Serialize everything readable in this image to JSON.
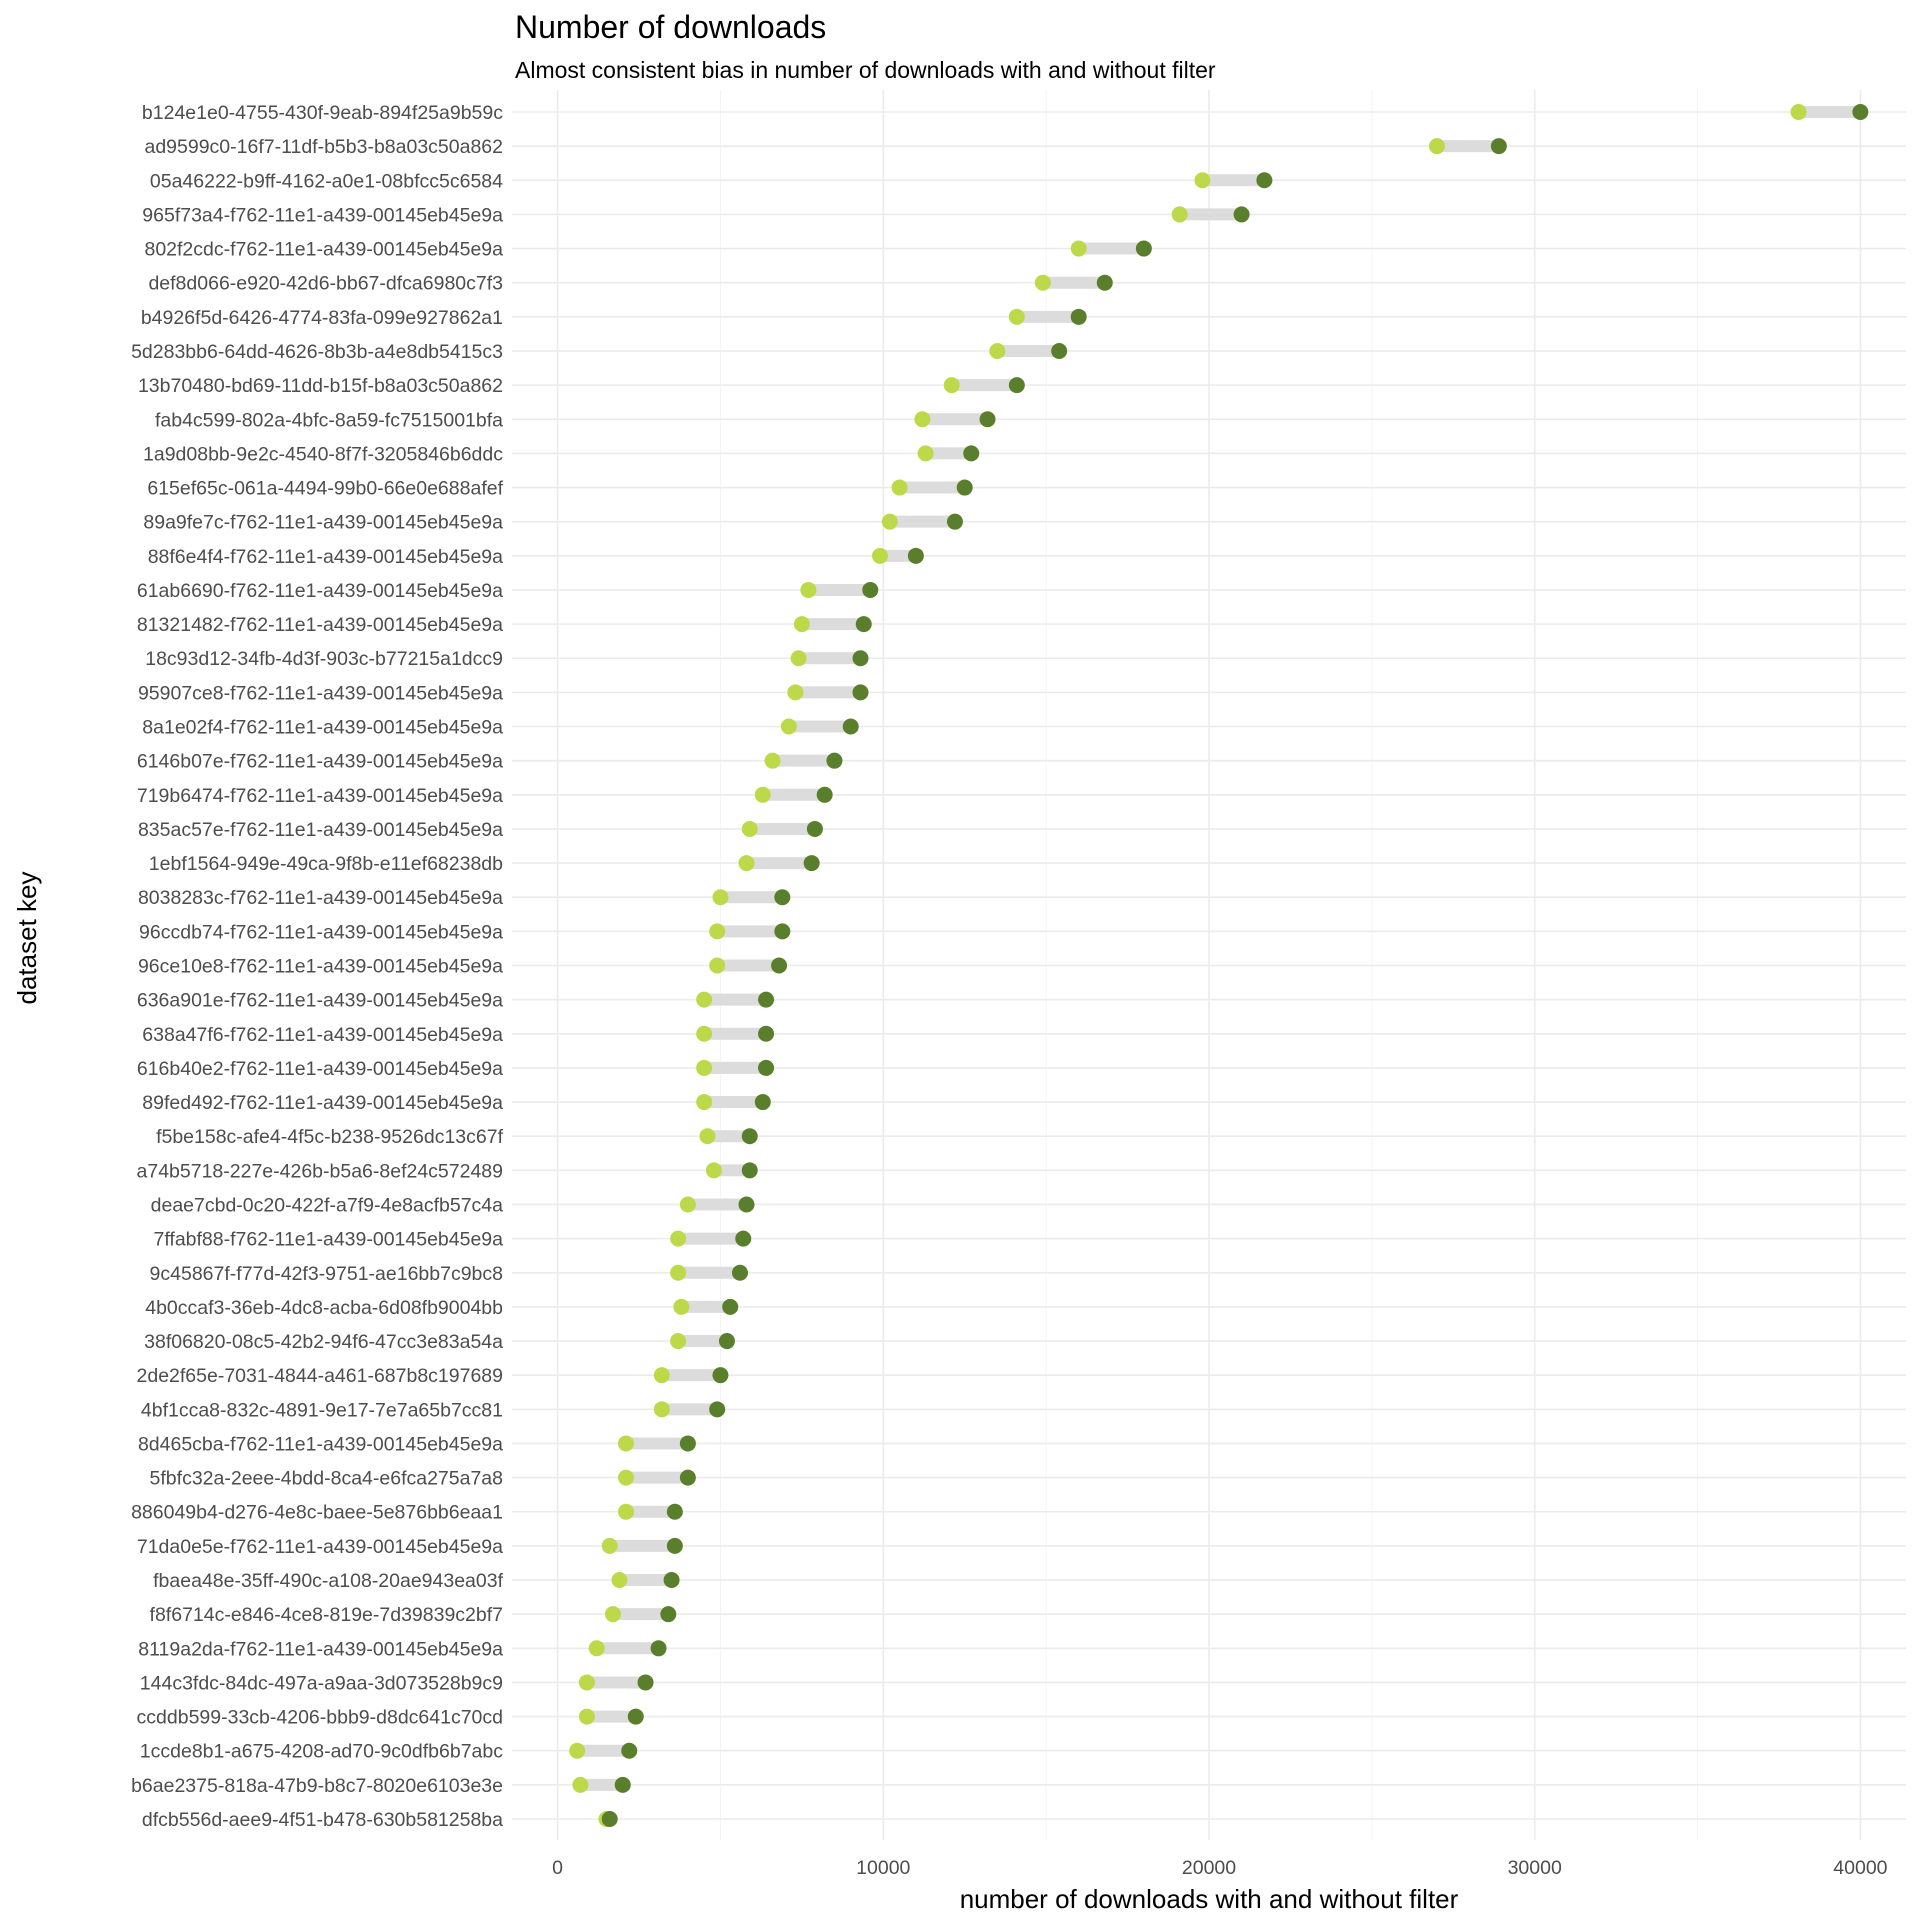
{
  "chart_data": {
    "type": "scatter",
    "title": "Number of downloads",
    "subtitle": "Almost consistent bias in number of downloads with and without filter",
    "xlabel": "number of downloads with and without filter",
    "ylabel": "dataset key",
    "xlim": [
      -1400,
      41400
    ],
    "x_ticks": [
      0,
      10000,
      20000,
      30000,
      40000
    ],
    "x_tick_labels": [
      "0",
      "10000",
      "20000",
      "30000",
      "40000"
    ],
    "grid": true,
    "legend": "none",
    "colors": {
      "light_point": "#bcd94a",
      "dark_point": "#5a7f2c",
      "segment": "#dcdcdc"
    },
    "datasets": [
      {
        "key": "b124e1e0-4755-430f-9eab-894f25a9b59c",
        "light": 38100,
        "dark": 40000
      },
      {
        "key": "ad9599c0-16f7-11df-b5b3-b8a03c50a862",
        "light": 27000,
        "dark": 28900
      },
      {
        "key": "05a46222-b9ff-4162-a0e1-08bfcc5c6584",
        "light": 19800,
        "dark": 21700
      },
      {
        "key": "965f73a4-f762-11e1-a439-00145eb45e9a",
        "light": 19100,
        "dark": 21000
      },
      {
        "key": "802f2cdc-f762-11e1-a439-00145eb45e9a",
        "light": 16000,
        "dark": 18000
      },
      {
        "key": "def8d066-e920-42d6-bb67-dfca6980c7f3",
        "light": 14900,
        "dark": 16800
      },
      {
        "key": "b4926f5d-6426-4774-83fa-099e927862a1",
        "light": 14100,
        "dark": 16000
      },
      {
        "key": "5d283bb6-64dd-4626-8b3b-a4e8db5415c3",
        "light": 13500,
        "dark": 15400
      },
      {
        "key": "13b70480-bd69-11dd-b15f-b8a03c50a862",
        "light": 12100,
        "dark": 14100
      },
      {
        "key": "fab4c599-802a-4bfc-8a59-fc7515001bfa",
        "light": 11200,
        "dark": 13200
      },
      {
        "key": "1a9d08bb-9e2c-4540-8f7f-3205846b6ddc",
        "light": 11300,
        "dark": 12700
      },
      {
        "key": "615ef65c-061a-4494-99b0-66e0e688afef",
        "light": 10500,
        "dark": 12500
      },
      {
        "key": "89a9fe7c-f762-11e1-a439-00145eb45e9a",
        "light": 10200,
        "dark": 12200
      },
      {
        "key": "88f6e4f4-f762-11e1-a439-00145eb45e9a",
        "light": 9900,
        "dark": 11000
      },
      {
        "key": "61ab6690-f762-11e1-a439-00145eb45e9a",
        "light": 7700,
        "dark": 9600
      },
      {
        "key": "81321482-f762-11e1-a439-00145eb45e9a",
        "light": 7500,
        "dark": 9400
      },
      {
        "key": "18c93d12-34fb-4d3f-903c-b77215a1dcc9",
        "light": 7400,
        "dark": 9300
      },
      {
        "key": "95907ce8-f762-11e1-a439-00145eb45e9a",
        "light": 7300,
        "dark": 9300
      },
      {
        "key": "8a1e02f4-f762-11e1-a439-00145eb45e9a",
        "light": 7100,
        "dark": 9000
      },
      {
        "key": "6146b07e-f762-11e1-a439-00145eb45e9a",
        "light": 6600,
        "dark": 8500
      },
      {
        "key": "719b6474-f762-11e1-a439-00145eb45e9a",
        "light": 6300,
        "dark": 8200
      },
      {
        "key": "835ac57e-f762-11e1-a439-00145eb45e9a",
        "light": 5900,
        "dark": 7900
      },
      {
        "key": "1ebf1564-949e-49ca-9f8b-e11ef68238db",
        "light": 5800,
        "dark": 7800
      },
      {
        "key": "8038283c-f762-11e1-a439-00145eb45e9a",
        "light": 5000,
        "dark": 6900
      },
      {
        "key": "96ccdb74-f762-11e1-a439-00145eb45e9a",
        "light": 4900,
        "dark": 6900
      },
      {
        "key": "96ce10e8-f762-11e1-a439-00145eb45e9a",
        "light": 4900,
        "dark": 6800
      },
      {
        "key": "636a901e-f762-11e1-a439-00145eb45e9a",
        "light": 4500,
        "dark": 6400
      },
      {
        "key": "638a47f6-f762-11e1-a439-00145eb45e9a",
        "light": 4500,
        "dark": 6400
      },
      {
        "key": "616b40e2-f762-11e1-a439-00145eb45e9a",
        "light": 4500,
        "dark": 6400
      },
      {
        "key": "89fed492-f762-11e1-a439-00145eb45e9a",
        "light": 4500,
        "dark": 6300
      },
      {
        "key": "f5be158c-afe4-4f5c-b238-9526dc13c67f",
        "light": 4600,
        "dark": 5900
      },
      {
        "key": "a74b5718-227e-426b-b5a6-8ef24c572489",
        "light": 4800,
        "dark": 5900
      },
      {
        "key": "deae7cbd-0c20-422f-a7f9-4e8acfb57c4a",
        "light": 4000,
        "dark": 5800
      },
      {
        "key": "7ffabf88-f762-11e1-a439-00145eb45e9a",
        "light": 3700,
        "dark": 5700
      },
      {
        "key": "9c45867f-f77d-42f3-9751-ae16bb7c9bc8",
        "light": 3700,
        "dark": 5600
      },
      {
        "key": "4b0ccaf3-36eb-4dc8-acba-6d08fb9004bb",
        "light": 3800,
        "dark": 5300
      },
      {
        "key": "38f06820-08c5-42b2-94f6-47cc3e83a54a",
        "light": 3700,
        "dark": 5200
      },
      {
        "key": "2de2f65e-7031-4844-a461-687b8c197689",
        "light": 3200,
        "dark": 5000
      },
      {
        "key": "4bf1cca8-832c-4891-9e17-7e7a65b7cc81",
        "light": 3200,
        "dark": 4900
      },
      {
        "key": "8d465cba-f762-11e1-a439-00145eb45e9a",
        "light": 2100,
        "dark": 4000
      },
      {
        "key": "5fbfc32a-2eee-4bdd-8ca4-e6fca275a7a8",
        "light": 2100,
        "dark": 4000
      },
      {
        "key": "886049b4-d276-4e8c-baee-5e876bb6eaa1",
        "light": 2100,
        "dark": 3600
      },
      {
        "key": "71da0e5e-f762-11e1-a439-00145eb45e9a",
        "light": 1600,
        "dark": 3600
      },
      {
        "key": "fbaea48e-35ff-490c-a108-20ae943ea03f",
        "light": 1900,
        "dark": 3500
      },
      {
        "key": "f8f6714c-e846-4ce8-819e-7d39839c2bf7",
        "light": 1700,
        "dark": 3400
      },
      {
        "key": "8119a2da-f762-11e1-a439-00145eb45e9a",
        "light": 1200,
        "dark": 3100
      },
      {
        "key": "144c3fdc-84dc-497a-a9aa-3d073528b9c9",
        "light": 900,
        "dark": 2700
      },
      {
        "key": "ccddb599-33cb-4206-bbb9-d8dc641c70cd",
        "light": 900,
        "dark": 2400
      },
      {
        "key": "1ccde8b1-a675-4208-ad70-9c0dfb6b7abc",
        "light": 600,
        "dark": 2200
      },
      {
        "key": "b6ae2375-818a-47b9-b8c7-8020e6103e3e",
        "light": 700,
        "dark": 2000
      },
      {
        "key": "dfcb556d-aee9-4f51-b478-630b581258ba",
        "light": 1500,
        "dark": 1600
      }
    ]
  }
}
